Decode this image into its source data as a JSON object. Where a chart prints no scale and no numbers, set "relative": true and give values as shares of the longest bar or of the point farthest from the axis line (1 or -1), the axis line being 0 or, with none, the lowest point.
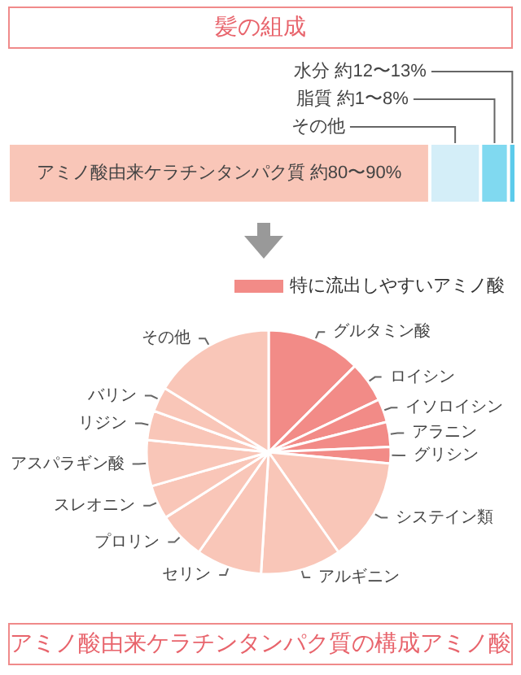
{
  "chart_data": [
    {
      "type": "bar",
      "title": "髪の組成",
      "orientation": "horizontal",
      "stacked": true,
      "relative": true,
      "categories": [
        null
      ],
      "series": [
        {
          "name": "アミノ酸由来ケラチンタンパク質 約80〜90%",
          "color": "#f9c6b8",
          "values": [
            0.83
          ]
        },
        {
          "name": "その他",
          "color": "#d4eef8",
          "values": [
            0.1
          ]
        },
        {
          "name": "脂質 約1〜8%",
          "color": "#80d9f0",
          "values": [
            0.055
          ]
        },
        {
          "name": "水分 約12〜13%",
          "color": "#5ccbeb",
          "values": [
            0.015
          ]
        }
      ]
    },
    {
      "type": "pie",
      "title": "アミノ酸由来ケラチンタンパク質の構成アミノ酸",
      "legend_title": "特に流出しやすいアミノ酸",
      "categories": [
        "グルタミン酸",
        "ロイシン",
        "イソロイシン",
        "アラニン",
        "グリシン",
        "システイン類",
        "アルギニン",
        "セリン",
        "プロリン",
        "スレオニン",
        "アスパラギン酸",
        "リジン",
        "バリン",
        "その他"
      ],
      "values": [
        12.5,
        5.4,
        3.1,
        3.3,
        2.2,
        13.8,
        10.7,
        8.7,
        6.3,
        4.5,
        6.1,
        3.9,
        3.3,
        16.2
      ],
      "colors": [
        "#f28b87",
        "#f28b87",
        "#f28b87",
        "#f28b87",
        "#f28b87",
        "#f9c6b8",
        "#f9c6b8",
        "#f9c6b8",
        "#f9c6b8",
        "#f9c6b8",
        "#f9c6b8",
        "#f9c6b8",
        "#f9c6b8",
        "#f9c6b8"
      ]
    }
  ]
}
